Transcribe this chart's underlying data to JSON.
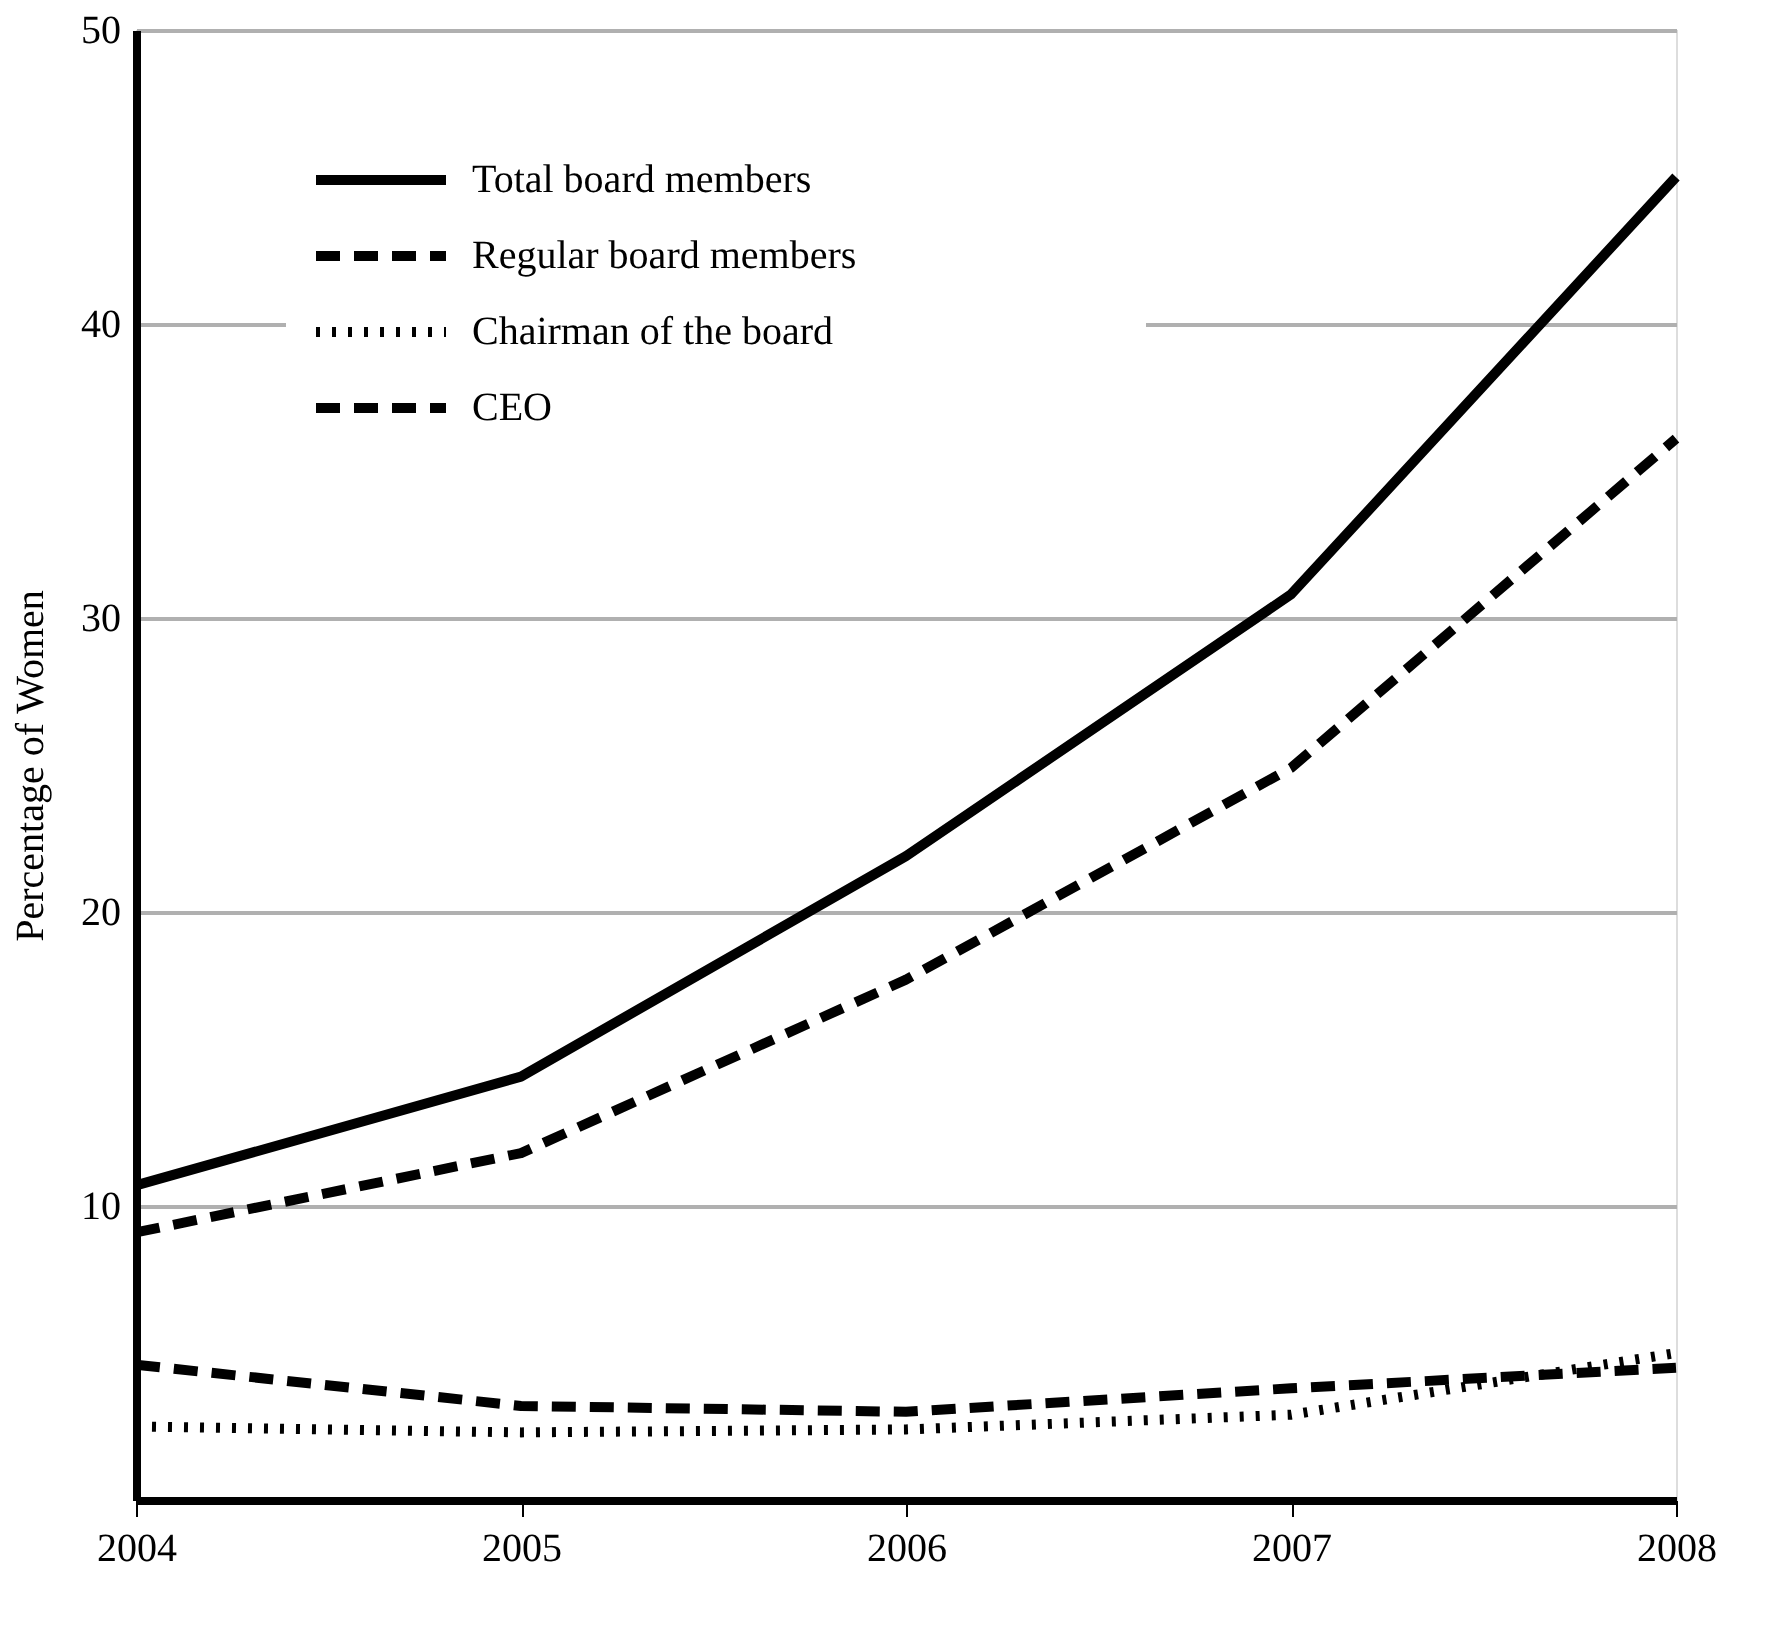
{
  "chart_data": {
    "type": "line",
    "ylabel": "Percentage of Women",
    "x": [
      2004,
      2005,
      2006,
      2007,
      2008
    ],
    "xlim": [
      2004,
      2008
    ],
    "xticks": [
      2004,
      2005,
      2006,
      2007,
      2008
    ],
    "ylim": [
      0,
      50
    ],
    "yticks": [
      10,
      20,
      30,
      40,
      50
    ],
    "grid": "y",
    "legend": "top left",
    "marker": "none",
    "series": [
      {
        "name": "Total board members",
        "color": "#000000",
        "line_style": "solid",
        "values": [
          10.7,
          14.4,
          21.9,
          30.8,
          45.0
        ]
      },
      {
        "name": "Regular board members",
        "color": "#000000",
        "line_style": "dashed",
        "values": [
          9.1,
          11.8,
          17.7,
          24.9,
          36.1
        ]
      },
      {
        "name": "Chairman of the board",
        "color": "#000000",
        "line_style": "dotted",
        "values": [
          2.5,
          2.3,
          2.4,
          2.9,
          5.0
        ]
      },
      {
        "name": "CEO",
        "color": "#000000",
        "line_style": "dashed",
        "values": [
          4.6,
          3.2,
          3.0,
          3.8,
          4.5
        ]
      }
    ]
  }
}
